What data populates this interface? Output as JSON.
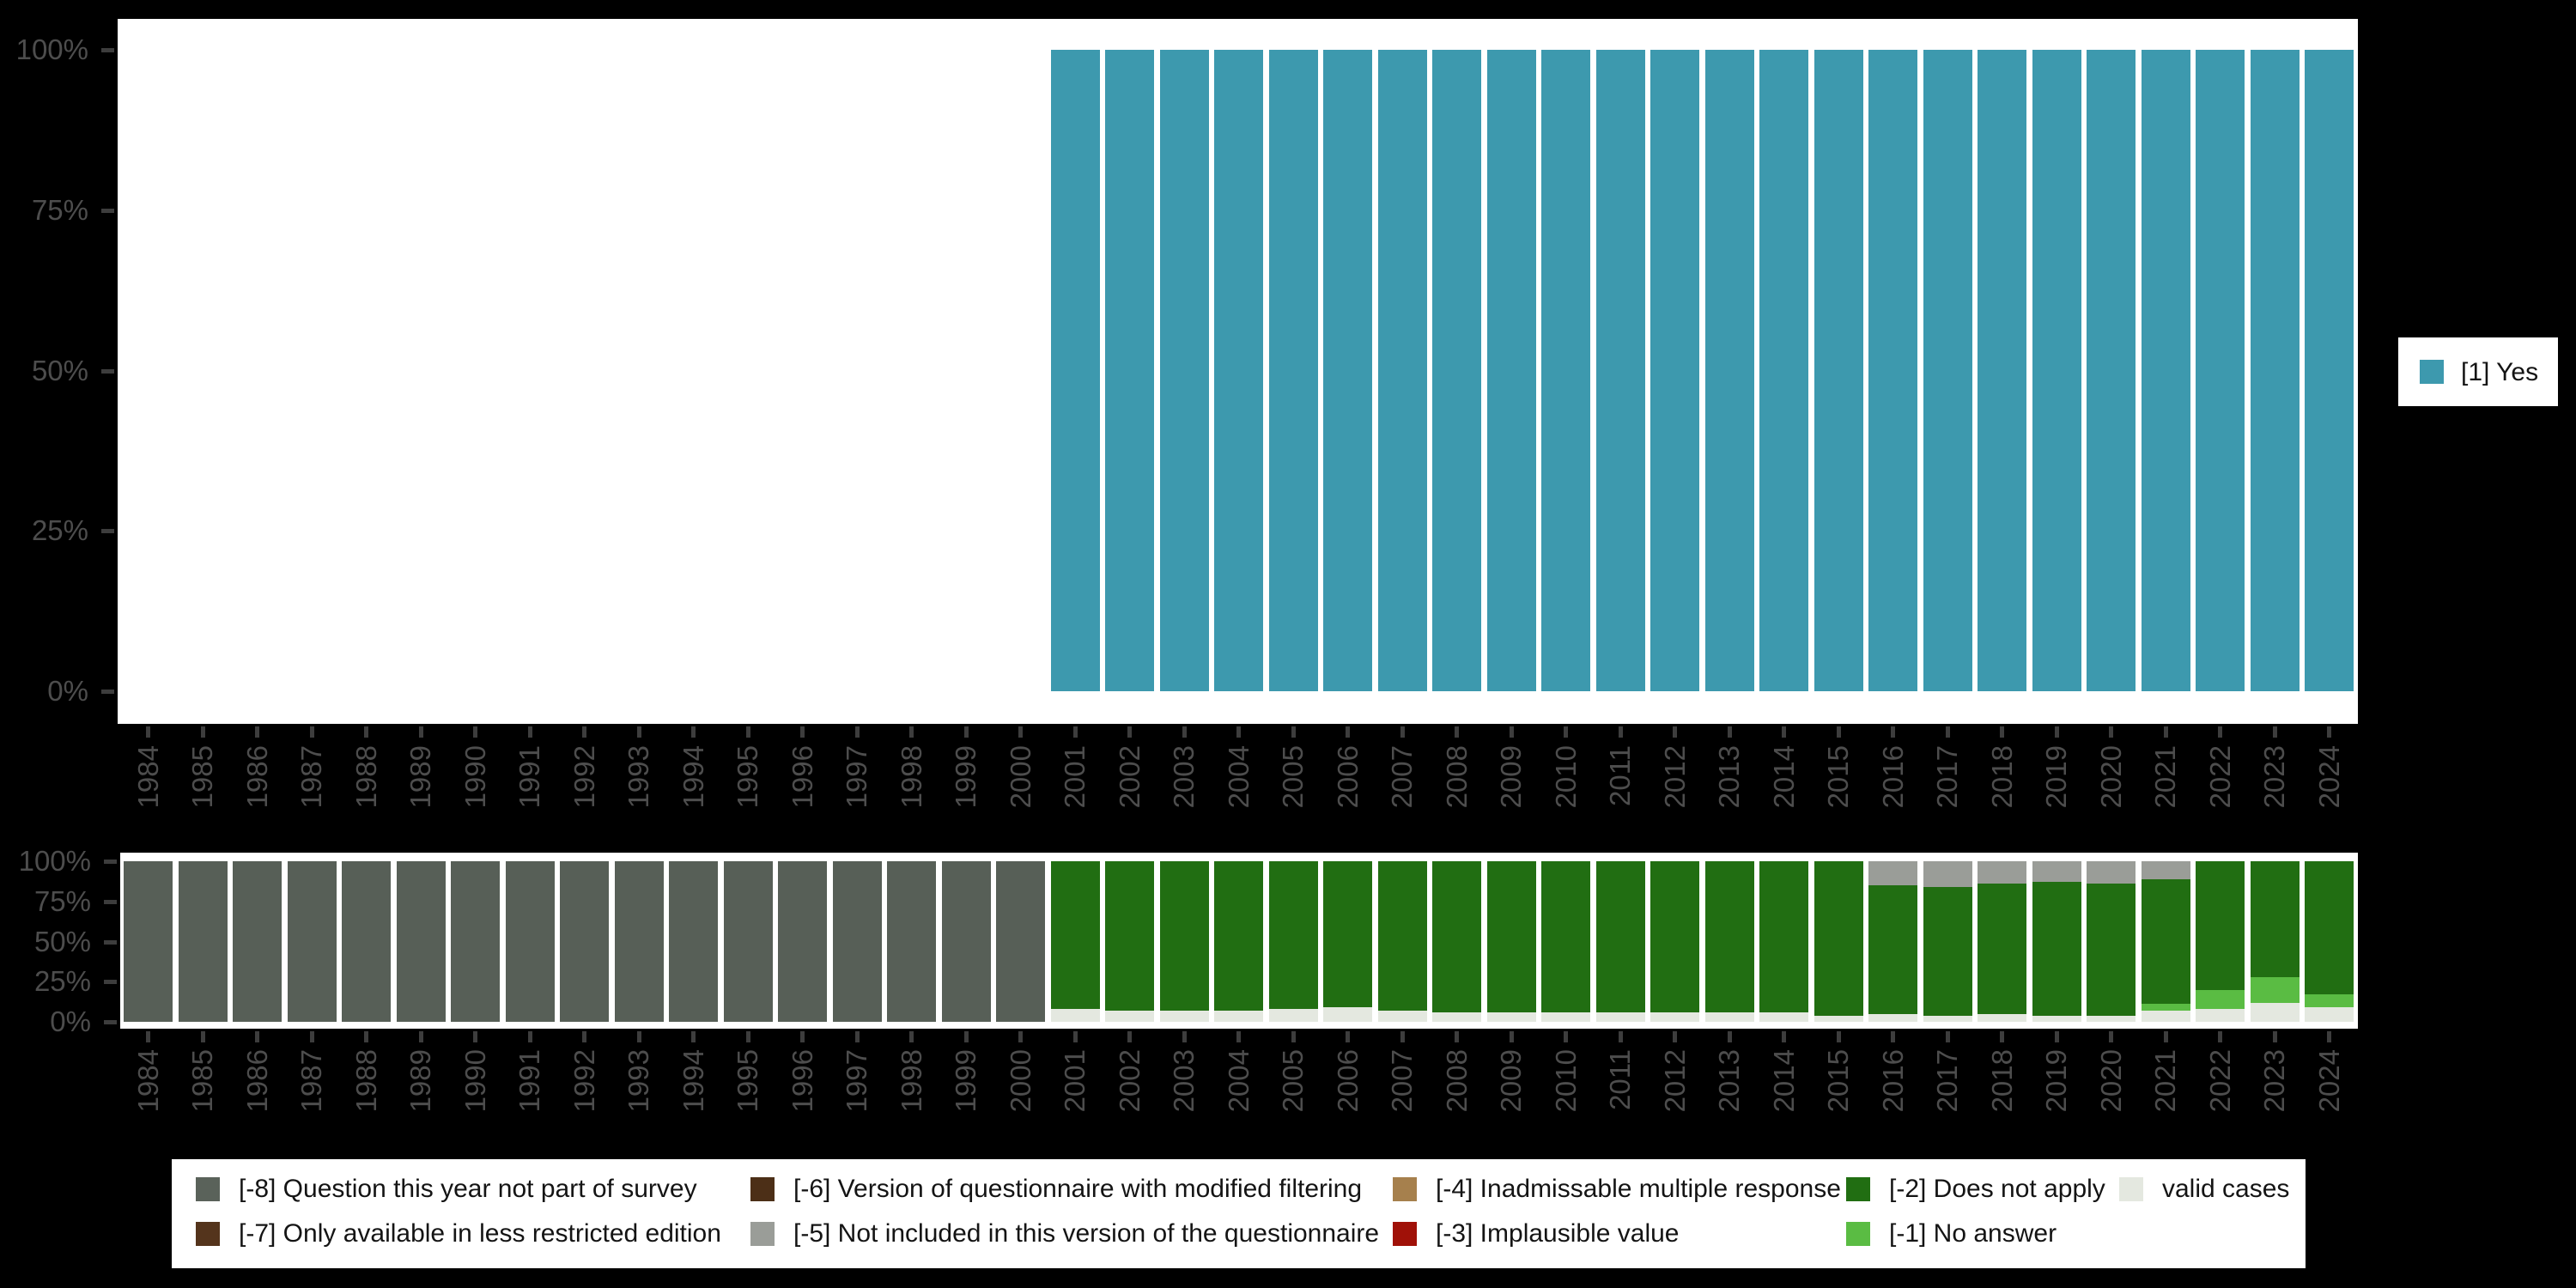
{
  "page": {
    "background": "#000000"
  },
  "chart_data": [
    {
      "id": "valid-values-chart",
      "type": "bar",
      "stacked": true,
      "title": "",
      "xlabel": "",
      "ylabel": "",
      "ylim": [
        0,
        100
      ],
      "grid": false,
      "y_tick_labels": [
        "100%",
        "75%",
        "50%",
        "25%",
        "0%"
      ],
      "categories": [
        "1984",
        "1985",
        "1986",
        "1987",
        "1988",
        "1989",
        "1990",
        "1991",
        "1992",
        "1993",
        "1994",
        "1995",
        "1996",
        "1997",
        "1998",
        "1999",
        "2000",
        "2001",
        "2002",
        "2003",
        "2004",
        "2005",
        "2006",
        "2007",
        "2008",
        "2009",
        "2010",
        "2011",
        "2012",
        "2013",
        "2014",
        "2015",
        "2016",
        "2017",
        "2018",
        "2019",
        "2020",
        "2021",
        "2022",
        "2023",
        "2024"
      ],
      "series": [
        {
          "name": "[1] Yes",
          "color": "#3d99ae",
          "values": [
            0,
            0,
            0,
            0,
            0,
            0,
            0,
            0,
            0,
            0,
            0,
            0,
            0,
            0,
            0,
            0,
            0,
            100,
            100,
            100,
            100,
            100,
            100,
            100,
            100,
            100,
            100,
            100,
            100,
            100,
            100,
            100,
            100,
            100,
            100,
            100,
            100,
            100,
            100,
            100,
            100
          ]
        }
      ],
      "legend": {
        "position": "right",
        "items": [
          {
            "label": "[1] Yes",
            "color": "#3d99ae"
          }
        ]
      }
    },
    {
      "id": "missing-values-chart",
      "type": "bar",
      "stacked": true,
      "title": "",
      "xlabel": "",
      "ylabel": "",
      "ylim": [
        0,
        100
      ],
      "grid": false,
      "y_tick_labels": [
        "100%",
        "75%",
        "50%",
        "25%",
        "0%"
      ],
      "categories": [
        "1984",
        "1985",
        "1986",
        "1987",
        "1988",
        "1989",
        "1990",
        "1991",
        "1992",
        "1993",
        "1994",
        "1995",
        "1996",
        "1997",
        "1998",
        "1999",
        "2000",
        "2001",
        "2002",
        "2003",
        "2004",
        "2005",
        "2006",
        "2007",
        "2008",
        "2009",
        "2010",
        "2011",
        "2012",
        "2013",
        "2014",
        "2015",
        "2016",
        "2017",
        "2018",
        "2019",
        "2020",
        "2021",
        "2022",
        "2023",
        "2024"
      ],
      "series": [
        {
          "name": "valid cases",
          "color": "#e4e8e0",
          "values": [
            0,
            0,
            0,
            0,
            0,
            0,
            0,
            0,
            0,
            0,
            0,
            0,
            0,
            0,
            0,
            0,
            0,
            8,
            7,
            7,
            7,
            8,
            9,
            7,
            6,
            6,
            6,
            6,
            6,
            6,
            6,
            4,
            5,
            4,
            5,
            4,
            4,
            7,
            8,
            12,
            9
          ]
        },
        {
          "name": "[-1] No answer",
          "color": "#5abc43",
          "values": [
            0,
            0,
            0,
            0,
            0,
            0,
            0,
            0,
            0,
            0,
            0,
            0,
            0,
            0,
            0,
            0,
            0,
            0,
            0,
            0,
            0,
            0,
            0,
            0,
            0,
            0,
            0,
            0,
            0,
            0,
            0,
            0,
            0,
            0,
            0,
            0,
            0,
            4,
            12,
            16,
            8
          ]
        },
        {
          "name": "[-2] Does not apply",
          "color": "#216e12",
          "values": [
            0,
            0,
            0,
            0,
            0,
            0,
            0,
            0,
            0,
            0,
            0,
            0,
            0,
            0,
            0,
            0,
            0,
            92,
            93,
            93,
            93,
            92,
            91,
            93,
            94,
            94,
            94,
            94,
            94,
            94,
            94,
            96,
            80,
            80,
            81,
            83,
            82,
            78,
            80,
            72,
            83
          ]
        },
        {
          "name": "[-5] Not included in this version of the questionnaire",
          "color": "#9a9d98",
          "values": [
            0,
            0,
            0,
            0,
            0,
            0,
            0,
            0,
            0,
            0,
            0,
            0,
            0,
            0,
            0,
            0,
            0,
            0,
            0,
            0,
            0,
            0,
            0,
            0,
            0,
            0,
            0,
            0,
            0,
            0,
            0,
            0,
            15,
            16,
            14,
            13,
            14,
            11,
            0,
            0,
            0
          ]
        },
        {
          "name": "[-8] Question this year not part of survey",
          "color": "#575f57",
          "values": [
            100,
            100,
            100,
            100,
            100,
            100,
            100,
            100,
            100,
            100,
            100,
            100,
            100,
            100,
            100,
            100,
            100,
            0,
            0,
            0,
            0,
            0,
            0,
            0,
            0,
            0,
            0,
            0,
            0,
            0,
            0,
            0,
            0,
            0,
            0,
            0,
            0,
            0,
            0,
            0,
            0
          ]
        }
      ]
    }
  ],
  "values_legend": {
    "items": [
      {
        "label": "[1] Yes",
        "color": "#3d99ae"
      }
    ]
  },
  "missing_legend": {
    "items": [
      {
        "label": "[-8] Question this year not part of survey",
        "color": "#5a625a"
      },
      {
        "label": "[-7] Only available in less restricted edition",
        "color": "#54341c"
      },
      {
        "label": "[-6] Version of questionnaire with modified filtering",
        "color": "#4c2f17"
      },
      {
        "label": "[-5] Not included in this version of the questionnaire",
        "color": "#9a9d98"
      },
      {
        "label": "[-4] Inadmissable multiple response",
        "color": "#a6804d"
      },
      {
        "label": "[-3] Implausible value",
        "color": "#a01108"
      },
      {
        "label": "[-2] Does not apply",
        "color": "#216e12"
      },
      {
        "label": "[-1] No answer",
        "color": "#5abc43"
      },
      {
        "label": "valid cases",
        "color": "#e4e8e0"
      }
    ]
  }
}
